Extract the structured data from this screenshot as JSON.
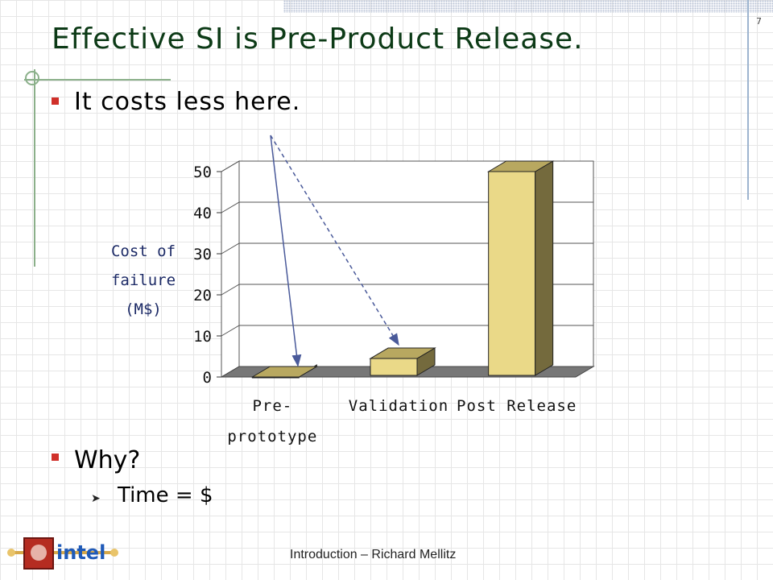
{
  "slide": {
    "number": "7",
    "title": "Effective SI is Pre-Product Release.",
    "bullets": [
      {
        "text": "It costs less here."
      },
      {
        "text": "Why?",
        "sub": "Time = $"
      }
    ],
    "footer": "Introduction – Richard Mellitz",
    "logo_text": "intel"
  },
  "colors": {
    "title": "#0c3a16",
    "bullet": "#d0302a",
    "bar_front": "#ead988",
    "bar_side": "#746a3d",
    "bar_top": "#b8a860",
    "floor": "#777777"
  },
  "chart_data": {
    "type": "bar",
    "categories": [
      "Pre-\nprototype",
      "Validation",
      "Post Release"
    ],
    "values": [
      0,
      4.5,
      50
    ],
    "title": "",
    "xlabel": "",
    "ylabel": "Cost of failure (M$)",
    "ylim": [
      0,
      50
    ],
    "yticks": [
      0,
      10,
      20,
      30,
      40,
      50
    ],
    "grid": true,
    "style": "3d"
  }
}
